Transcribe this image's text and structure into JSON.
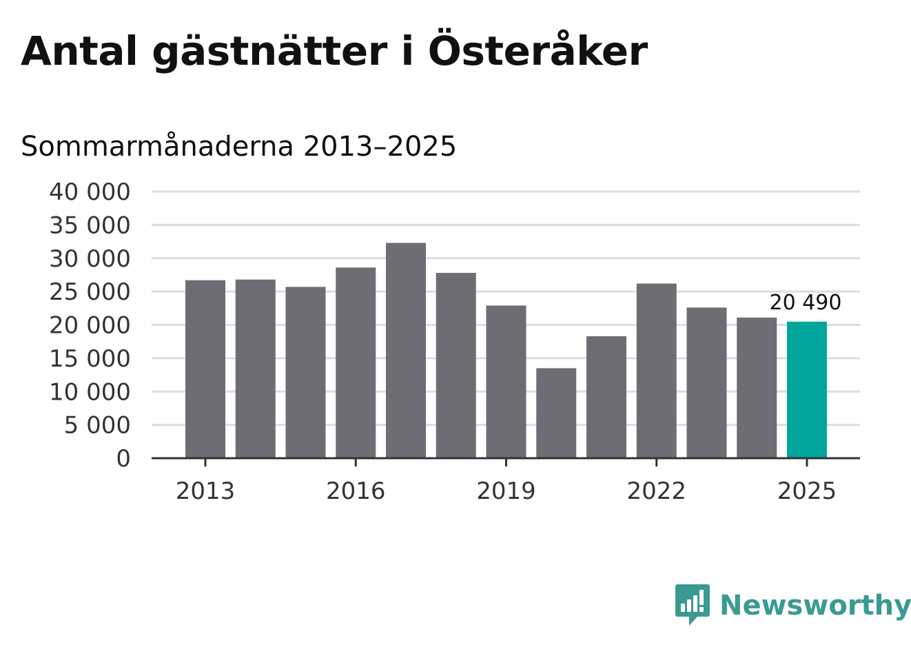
{
  "header": {
    "title": "Antal gästnätter i Österåker",
    "subtitle": "Sommarmånaderna 2013–2025"
  },
  "brand": {
    "name": "Newsworthy",
    "icon": "newsworthy-logo-icon",
    "color": "#3a9a92"
  },
  "chart_data": {
    "type": "bar",
    "categories": [
      "2013",
      "2014",
      "2015",
      "2016",
      "2017",
      "2018",
      "2019",
      "2020",
      "2021",
      "2022",
      "2023",
      "2024",
      "2025"
    ],
    "values": [
      26700,
      26800,
      25700,
      28600,
      32300,
      27800,
      22900,
      13500,
      18300,
      26200,
      22600,
      21100,
      20490
    ],
    "highlight_index": 12,
    "highlight_label": "20 490",
    "x_tick_labels": [
      "2013",
      "2016",
      "2019",
      "2022",
      "2025"
    ],
    "y_ticks": [
      0,
      5000,
      10000,
      15000,
      20000,
      25000,
      30000,
      35000,
      40000
    ],
    "y_tick_labels": [
      "0",
      "5 000",
      "10 000",
      "15 000",
      "20 000",
      "25 000",
      "30 000",
      "35 000",
      "40 000"
    ],
    "ylim": [
      0,
      40000
    ],
    "grid": true,
    "colors": {
      "bar": "#6e6d73",
      "highlight": "#00a69c",
      "grid": "#dddddd",
      "axis": "#333333"
    }
  }
}
